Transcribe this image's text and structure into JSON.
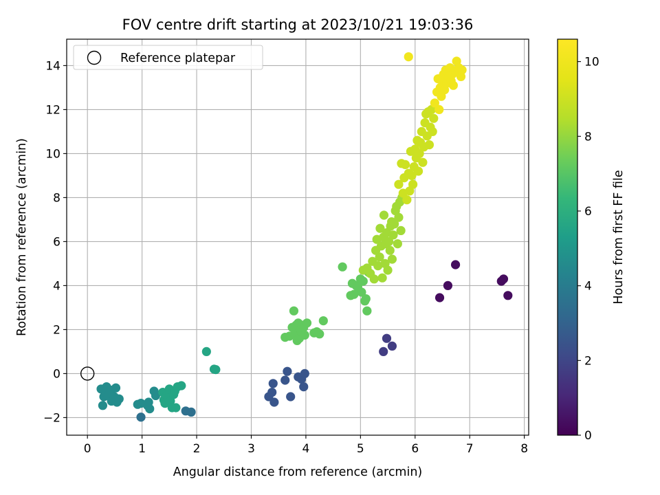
{
  "chart_data": {
    "type": "scatter",
    "title": "FOV centre drift starting at 2023/10/21 19:03:36",
    "xlabel": "Angular distance from reference (arcmin)",
    "ylabel": "Rotation from reference (arcmin)",
    "xlim": [
      -0.38,
      8.08
    ],
    "ylim": [
      -2.8,
      15.2
    ],
    "x_ticks": [
      0,
      1,
      2,
      3,
      4,
      5,
      6,
      7,
      8
    ],
    "y_ticks": [
      -2,
      0,
      2,
      4,
      6,
      8,
      10,
      12,
      14
    ],
    "grid": true,
    "legend": {
      "position": "top-left",
      "entries": [
        {
          "label": "Reference platepar",
          "marker": "open-circle"
        }
      ]
    },
    "reference_point": {
      "x": 0,
      "y": 0
    },
    "colorbar": {
      "label": "Hours from first FF file",
      "range": [
        0,
        10.6
      ],
      "ticks": [
        0,
        2,
        4,
        6,
        8,
        10
      ],
      "colormap": "viridis"
    },
    "point_groups": [
      {
        "hours": 0.3,
        "points": [
          [
            6.45,
            3.45
          ],
          [
            6.6,
            4.0
          ],
          [
            6.74,
            4.95
          ],
          [
            7.58,
            4.2
          ],
          [
            7.62,
            4.3
          ],
          [
            7.7,
            3.55
          ]
        ]
      },
      {
        "hours": 1.7,
        "points": [
          [
            5.42,
            1.0
          ],
          [
            5.48,
            1.6
          ],
          [
            5.58,
            1.25
          ]
        ]
      },
      {
        "hours": 2.5,
        "points": [
          [
            3.32,
            -1.05
          ],
          [
            3.38,
            -0.85
          ],
          [
            3.4,
            -0.45
          ],
          [
            3.42,
            -1.3
          ],
          [
            3.62,
            -0.3
          ],
          [
            3.66,
            0.1
          ],
          [
            3.72,
            -1.05
          ],
          [
            3.86,
            -0.15
          ],
          [
            3.92,
            -0.25
          ],
          [
            3.96,
            -0.6
          ],
          [
            3.98,
            0.0
          ]
        ]
      },
      {
        "hours": 3.5,
        "points": [
          [
            0.98,
            -1.98
          ],
          [
            1.8,
            -1.7
          ],
          [
            1.9,
            -1.75
          ]
        ]
      },
      {
        "hours": 4.6,
        "points": [
          [
            0.25,
            -0.7
          ],
          [
            0.28,
            -1.45
          ],
          [
            0.3,
            -1.05
          ],
          [
            0.32,
            -0.85
          ],
          [
            0.35,
            -0.6
          ],
          [
            0.38,
            -1.0
          ],
          [
            0.42,
            -0.75
          ],
          [
            0.44,
            -1.25
          ],
          [
            0.47,
            -1.2
          ],
          [
            0.49,
            -1.05
          ],
          [
            0.52,
            -0.65
          ],
          [
            0.54,
            -1.3
          ],
          [
            0.58,
            -1.15
          ],
          [
            0.92,
            -1.4
          ],
          [
            0.98,
            -1.35
          ],
          [
            1.1,
            -1.45
          ],
          [
            1.12,
            -1.3
          ],
          [
            1.14,
            -1.6
          ],
          [
            1.22,
            -0.8
          ],
          [
            1.25,
            -1.0
          ]
        ]
      },
      {
        "hours": 5.6,
        "points": [
          [
            1.38,
            -0.85
          ],
          [
            1.4,
            -1.2
          ],
          [
            1.42,
            -1.35
          ],
          [
            1.45,
            -1.0
          ],
          [
            1.48,
            -1.1
          ],
          [
            1.5,
            -0.7
          ],
          [
            1.52,
            -1.25
          ],
          [
            1.55,
            -1.55
          ],
          [
            1.58,
            -0.95
          ],
          [
            1.6,
            -0.8
          ],
          [
            1.62,
            -1.55
          ],
          [
            1.65,
            -0.6
          ],
          [
            1.72,
            -0.55
          ],
          [
            2.18,
            1.0
          ],
          [
            2.32,
            0.2
          ],
          [
            2.35,
            0.18
          ]
        ]
      },
      {
        "hours": 7.2,
        "points": [
          [
            3.62,
            1.65
          ],
          [
            3.7,
            1.7
          ],
          [
            3.75,
            2.1
          ],
          [
            3.78,
            2.85
          ],
          [
            3.8,
            1.8
          ],
          [
            3.82,
            2.2
          ],
          [
            3.84,
            1.5
          ],
          [
            3.86,
            2.3
          ],
          [
            3.88,
            1.6
          ],
          [
            3.9,
            2.0
          ],
          [
            3.92,
            1.9
          ],
          [
            3.94,
            2.2
          ],
          [
            3.96,
            2.1
          ],
          [
            3.98,
            1.75
          ],
          [
            4.02,
            2.3
          ],
          [
            4.15,
            1.85
          ],
          [
            4.2,
            1.9
          ],
          [
            4.25,
            1.8
          ],
          [
            4.32,
            2.4
          ],
          [
            4.67,
            4.85
          ],
          [
            4.82,
            3.55
          ],
          [
            4.85,
            4.1
          ],
          [
            4.88,
            3.6
          ],
          [
            4.92,
            4.0
          ],
          [
            4.95,
            3.95
          ],
          [
            5.0,
            4.3
          ],
          [
            5.02,
            3.7
          ],
          [
            5.05,
            4.2
          ],
          [
            5.08,
            3.3
          ],
          [
            5.1,
            3.4
          ],
          [
            5.12,
            2.85
          ],
          [
            5.15,
            4.6
          ]
        ]
      },
      {
        "hours": 8.2,
        "points": [
          [
            5.05,
            4.7
          ],
          [
            5.12,
            4.8
          ],
          [
            5.18,
            4.55
          ],
          [
            5.22,
            5.1
          ],
          [
            5.25,
            4.3
          ],
          [
            5.28,
            5.6
          ],
          [
            5.3,
            6.1
          ],
          [
            5.32,
            4.9
          ],
          [
            5.35,
            5.3
          ],
          [
            5.36,
            6.6
          ],
          [
            5.38,
            5.8
          ],
          [
            5.4,
            4.35
          ],
          [
            5.42,
            6.2
          ],
          [
            5.43,
            7.2
          ],
          [
            5.45,
            5.0
          ],
          [
            5.46,
            5.9
          ],
          [
            5.48,
            6.4
          ],
          [
            5.5,
            4.7
          ],
          [
            5.52,
            6.0
          ],
          [
            5.54,
            5.6
          ],
          [
            5.55,
            6.7
          ],
          [
            5.57,
            6.9
          ],
          [
            5.58,
            5.2
          ],
          [
            5.6,
            6.3
          ],
          [
            5.62,
            6.8
          ],
          [
            5.64,
            7.4
          ],
          [
            5.66,
            7.6
          ],
          [
            5.68,
            5.9
          ],
          [
            5.7,
            7.1
          ],
          [
            5.72,
            7.8
          ],
          [
            5.74,
            6.5
          ],
          [
            5.76,
            8.0
          ]
        ]
      },
      {
        "hours": 9.0,
        "points": [
          [
            5.7,
            8.6
          ],
          [
            5.75,
            9.55
          ],
          [
            5.78,
            8.2
          ],
          [
            5.8,
            8.9
          ],
          [
            5.82,
            9.5
          ],
          [
            5.85,
            7.9
          ],
          [
            5.88,
            9.1
          ],
          [
            5.9,
            8.3
          ],
          [
            5.92,
            10.1
          ],
          [
            5.94,
            9.0
          ],
          [
            5.96,
            8.6
          ],
          [
            5.98,
            9.4
          ],
          [
            6.0,
            10.2
          ],
          [
            6.02,
            9.8
          ],
          [
            6.04,
            10.6
          ],
          [
            6.06,
            9.2
          ],
          [
            6.08,
            10.0
          ],
          [
            6.1,
            10.5
          ],
          [
            6.12,
            11.0
          ],
          [
            6.14,
            9.6
          ],
          [
            6.16,
            10.3
          ],
          [
            6.18,
            11.4
          ],
          [
            6.2,
            11.8
          ],
          [
            6.22,
            10.8
          ],
          [
            6.24,
            11.9
          ],
          [
            6.26,
            10.4
          ],
          [
            6.28,
            11.2
          ],
          [
            6.3,
            12.0
          ],
          [
            6.32,
            11.0
          ],
          [
            6.34,
            11.6
          ]
        ]
      },
      {
        "hours": 10.1,
        "points": [
          [
            5.88,
            14.4
          ],
          [
            6.36,
            12.3
          ],
          [
            6.4,
            12.8
          ],
          [
            6.42,
            13.4
          ],
          [
            6.44,
            12.0
          ],
          [
            6.46,
            13.0
          ],
          [
            6.48,
            12.6
          ],
          [
            6.5,
            13.3
          ],
          [
            6.52,
            13.6
          ],
          [
            6.54,
            12.9
          ],
          [
            6.56,
            13.8
          ],
          [
            6.58,
            13.2
          ],
          [
            6.6,
            13.7
          ],
          [
            6.62,
            13.5
          ],
          [
            6.64,
            13.9
          ],
          [
            6.66,
            13.3
          ],
          [
            6.68,
            13.6
          ],
          [
            6.7,
            13.1
          ],
          [
            6.74,
            13.7
          ],
          [
            6.76,
            14.2
          ],
          [
            6.8,
            13.9
          ],
          [
            6.84,
            13.5
          ],
          [
            6.86,
            13.8
          ]
        ]
      }
    ]
  }
}
